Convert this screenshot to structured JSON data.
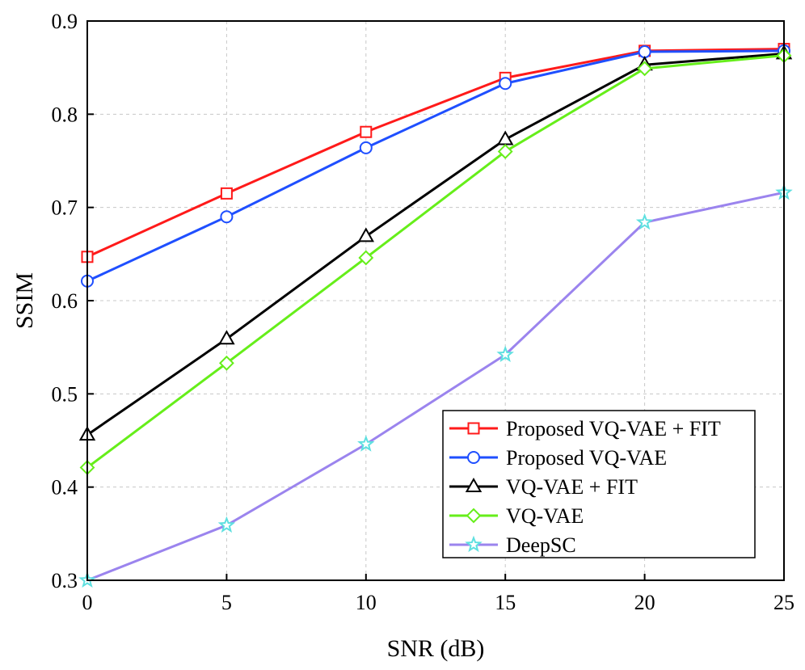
{
  "chart_data": {
    "type": "line",
    "xlabel": "SNR (dB)",
    "ylabel": "SSIM",
    "x": [
      0,
      5,
      10,
      15,
      20,
      25
    ],
    "xlim": [
      0,
      25
    ],
    "ylim": [
      0.3,
      0.9
    ],
    "xticks": [
      "0",
      "5",
      "10",
      "15",
      "20",
      "25"
    ],
    "yticks": [
      "0.3",
      "0.4",
      "0.5",
      "0.6",
      "0.7",
      "0.8",
      "0.9"
    ],
    "grid": true,
    "legend_position": "bottom-right",
    "series": [
      {
        "name": "Proposed VQ-VAE + FIT",
        "values": [
          0.647,
          0.715,
          0.781,
          0.839,
          0.868,
          0.87
        ],
        "color": "#ff1a1a",
        "marker": "square"
      },
      {
        "name": "Proposed VQ-VAE",
        "values": [
          0.621,
          0.69,
          0.764,
          0.833,
          0.867,
          0.868
        ],
        "color": "#1f4fff",
        "marker": "circle"
      },
      {
        "name": "VQ-VAE + FIT",
        "values": [
          0.456,
          0.559,
          0.669,
          0.773,
          0.853,
          0.865
        ],
        "color": "#000000",
        "marker": "triangle"
      },
      {
        "name": "VQ-VAE",
        "values": [
          0.421,
          0.533,
          0.646,
          0.76,
          0.849,
          0.863
        ],
        "color": "#66ee1a",
        "marker": "diamond"
      },
      {
        "name": "DeepSC",
        "values": [
          0.3,
          0.359,
          0.446,
          0.542,
          0.684,
          0.716
        ],
        "color": "#9b84ee",
        "marker": "star",
        "marker_color": "#5fe0e0"
      }
    ]
  }
}
